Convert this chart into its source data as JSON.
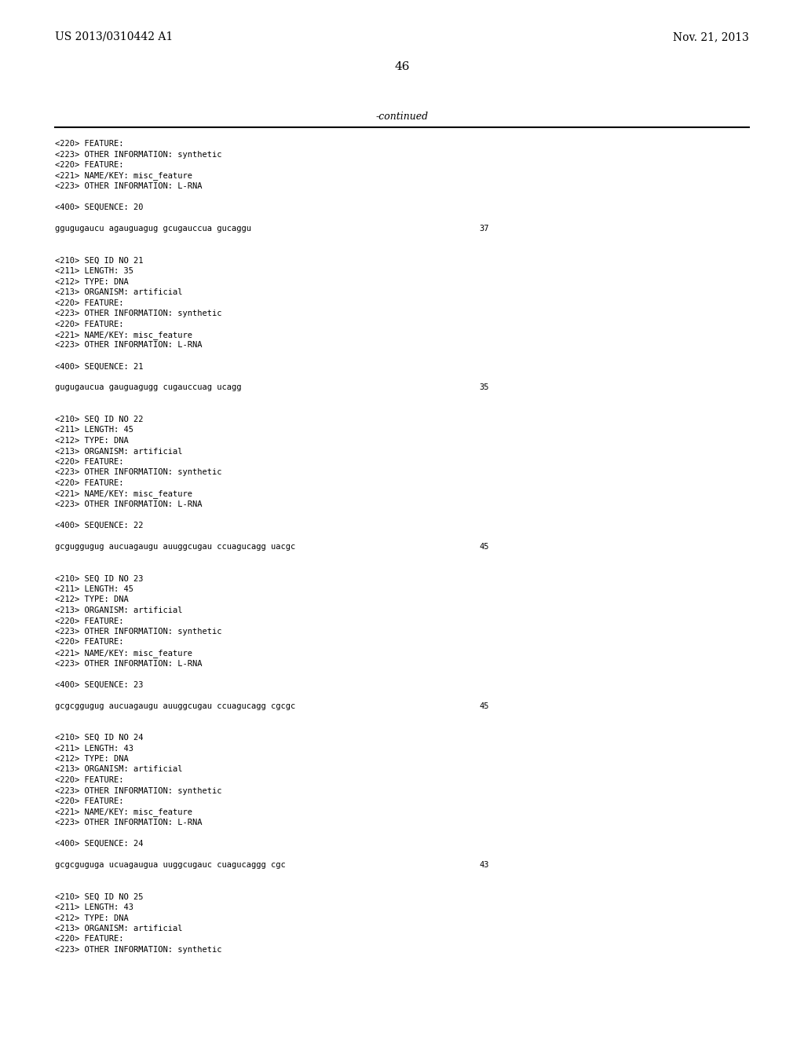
{
  "bg_color": "#ffffff",
  "page_width": 10.24,
  "page_height": 13.2,
  "header_left": "US 2013/0310442 A1",
  "header_right": "Nov. 21, 2013",
  "page_number": "46",
  "continued_label": "-continued",
  "all_lines": [
    {
      "text": "<220> FEATURE:"
    },
    {
      "text": "<223> OTHER INFORMATION: synthetic"
    },
    {
      "text": "<220> FEATURE:"
    },
    {
      "text": "<221> NAME/KEY: misc_feature"
    },
    {
      "text": "<223> OTHER INFORMATION: L-RNA"
    },
    {
      "text": ""
    },
    {
      "text": "<400> SEQUENCE: 20"
    },
    {
      "text": ""
    },
    {
      "text": "ggugugaucu agauguagug gcugauccua gucaggu",
      "number": "37"
    },
    {
      "text": ""
    },
    {
      "text": ""
    },
    {
      "text": "<210> SEQ ID NO 21"
    },
    {
      "text": "<211> LENGTH: 35"
    },
    {
      "text": "<212> TYPE: DNA"
    },
    {
      "text": "<213> ORGANISM: artificial"
    },
    {
      "text": "<220> FEATURE:"
    },
    {
      "text": "<223> OTHER INFORMATION: synthetic"
    },
    {
      "text": "<220> FEATURE:"
    },
    {
      "text": "<221> NAME/KEY: misc_feature"
    },
    {
      "text": "<223> OTHER INFORMATION: L-RNA"
    },
    {
      "text": ""
    },
    {
      "text": "<400> SEQUENCE: 21"
    },
    {
      "text": ""
    },
    {
      "text": "gugugaucua gauguagugg cugauccuag ucagg",
      "number": "35"
    },
    {
      "text": ""
    },
    {
      "text": ""
    },
    {
      "text": "<210> SEQ ID NO 22"
    },
    {
      "text": "<211> LENGTH: 45"
    },
    {
      "text": "<212> TYPE: DNA"
    },
    {
      "text": "<213> ORGANISM: artificial"
    },
    {
      "text": "<220> FEATURE:"
    },
    {
      "text": "<223> OTHER INFORMATION: synthetic"
    },
    {
      "text": "<220> FEATURE:"
    },
    {
      "text": "<221> NAME/KEY: misc_feature"
    },
    {
      "text": "<223> OTHER INFORMATION: L-RNA"
    },
    {
      "text": ""
    },
    {
      "text": "<400> SEQUENCE: 22"
    },
    {
      "text": ""
    },
    {
      "text": "gcguggugug aucuagaugu auuggcugau ccuagucagg uacgc",
      "number": "45"
    },
    {
      "text": ""
    },
    {
      "text": ""
    },
    {
      "text": "<210> SEQ ID NO 23"
    },
    {
      "text": "<211> LENGTH: 45"
    },
    {
      "text": "<212> TYPE: DNA"
    },
    {
      "text": "<213> ORGANISM: artificial"
    },
    {
      "text": "<220> FEATURE:"
    },
    {
      "text": "<223> OTHER INFORMATION: synthetic"
    },
    {
      "text": "<220> FEATURE:"
    },
    {
      "text": "<221> NAME/KEY: misc_feature"
    },
    {
      "text": "<223> OTHER INFORMATION: L-RNA"
    },
    {
      "text": ""
    },
    {
      "text": "<400> SEQUENCE: 23"
    },
    {
      "text": ""
    },
    {
      "text": "gcgcggugug aucuagaugu auuggcugau ccuagucagg cgcgc",
      "number": "45"
    },
    {
      "text": ""
    },
    {
      "text": ""
    },
    {
      "text": "<210> SEQ ID NO 24"
    },
    {
      "text": "<211> LENGTH: 43"
    },
    {
      "text": "<212> TYPE: DNA"
    },
    {
      "text": "<213> ORGANISM: artificial"
    },
    {
      "text": "<220> FEATURE:"
    },
    {
      "text": "<223> OTHER INFORMATION: synthetic"
    },
    {
      "text": "<220> FEATURE:"
    },
    {
      "text": "<221> NAME/KEY: misc_feature"
    },
    {
      "text": "<223> OTHER INFORMATION: L-RNA"
    },
    {
      "text": ""
    },
    {
      "text": "<400> SEQUENCE: 24"
    },
    {
      "text": ""
    },
    {
      "text": "gcgcguguga ucuagaugua uuggcugauc cuagucaggg cgc",
      "number": "43"
    },
    {
      "text": ""
    },
    {
      "text": ""
    },
    {
      "text": "<210> SEQ ID NO 25"
    },
    {
      "text": "<211> LENGTH: 43"
    },
    {
      "text": "<212> TYPE: DNA"
    },
    {
      "text": "<213> ORGANISM: artificial"
    },
    {
      "text": "<220> FEATURE:"
    },
    {
      "text": "<223> OTHER INFORMATION: synthetic"
    }
  ]
}
